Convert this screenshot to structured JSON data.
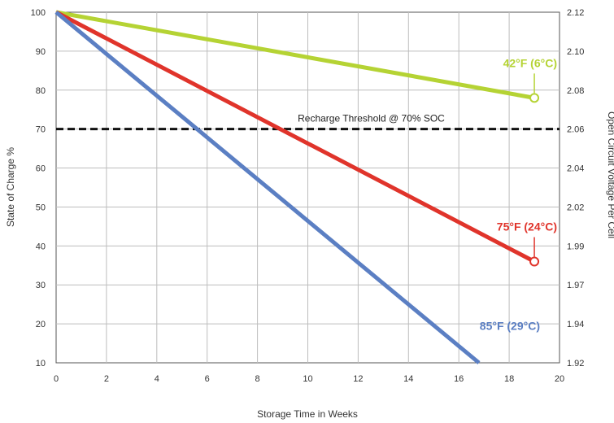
{
  "chart_data": {
    "type": "line",
    "xlabel": "Storage Time in Weeks",
    "ylabel": "State of Charge %",
    "ylabel_right": "Open Circuit Voltage Per Cell",
    "xlim": [
      0,
      20
    ],
    "ylim": [
      10,
      100
    ],
    "grid": true,
    "x_ticks": [
      "0",
      "2",
      "4",
      "6",
      "8",
      "10",
      "12",
      "14",
      "16",
      "18",
      "20"
    ],
    "y_ticks": [
      "10",
      "20",
      "30",
      "40",
      "50",
      "60",
      "70",
      "80",
      "90",
      "100"
    ],
    "y_right_ticks": [
      "1.92",
      "1.94",
      "1.97",
      "1.99",
      "2.02",
      "2.04",
      "2.06",
      "2.08",
      "2.10",
      "2.12"
    ],
    "series": [
      {
        "name": "42°F (6°C)",
        "color": "#b5d334",
        "x": [
          0,
          19
        ],
        "values": [
          100,
          78
        ]
      },
      {
        "name": "75°F (24°C)",
        "color": "#e0342b",
        "x": [
          0,
          19
        ],
        "values": [
          100,
          36
        ]
      },
      {
        "name": "85°F (29°C)",
        "color": "#5b7fc3",
        "x": [
          0,
          16.8
        ],
        "values": [
          100,
          10
        ]
      }
    ],
    "threshold": {
      "value": 70,
      "label": "Recharge Threshold @ 70% SOC"
    }
  }
}
